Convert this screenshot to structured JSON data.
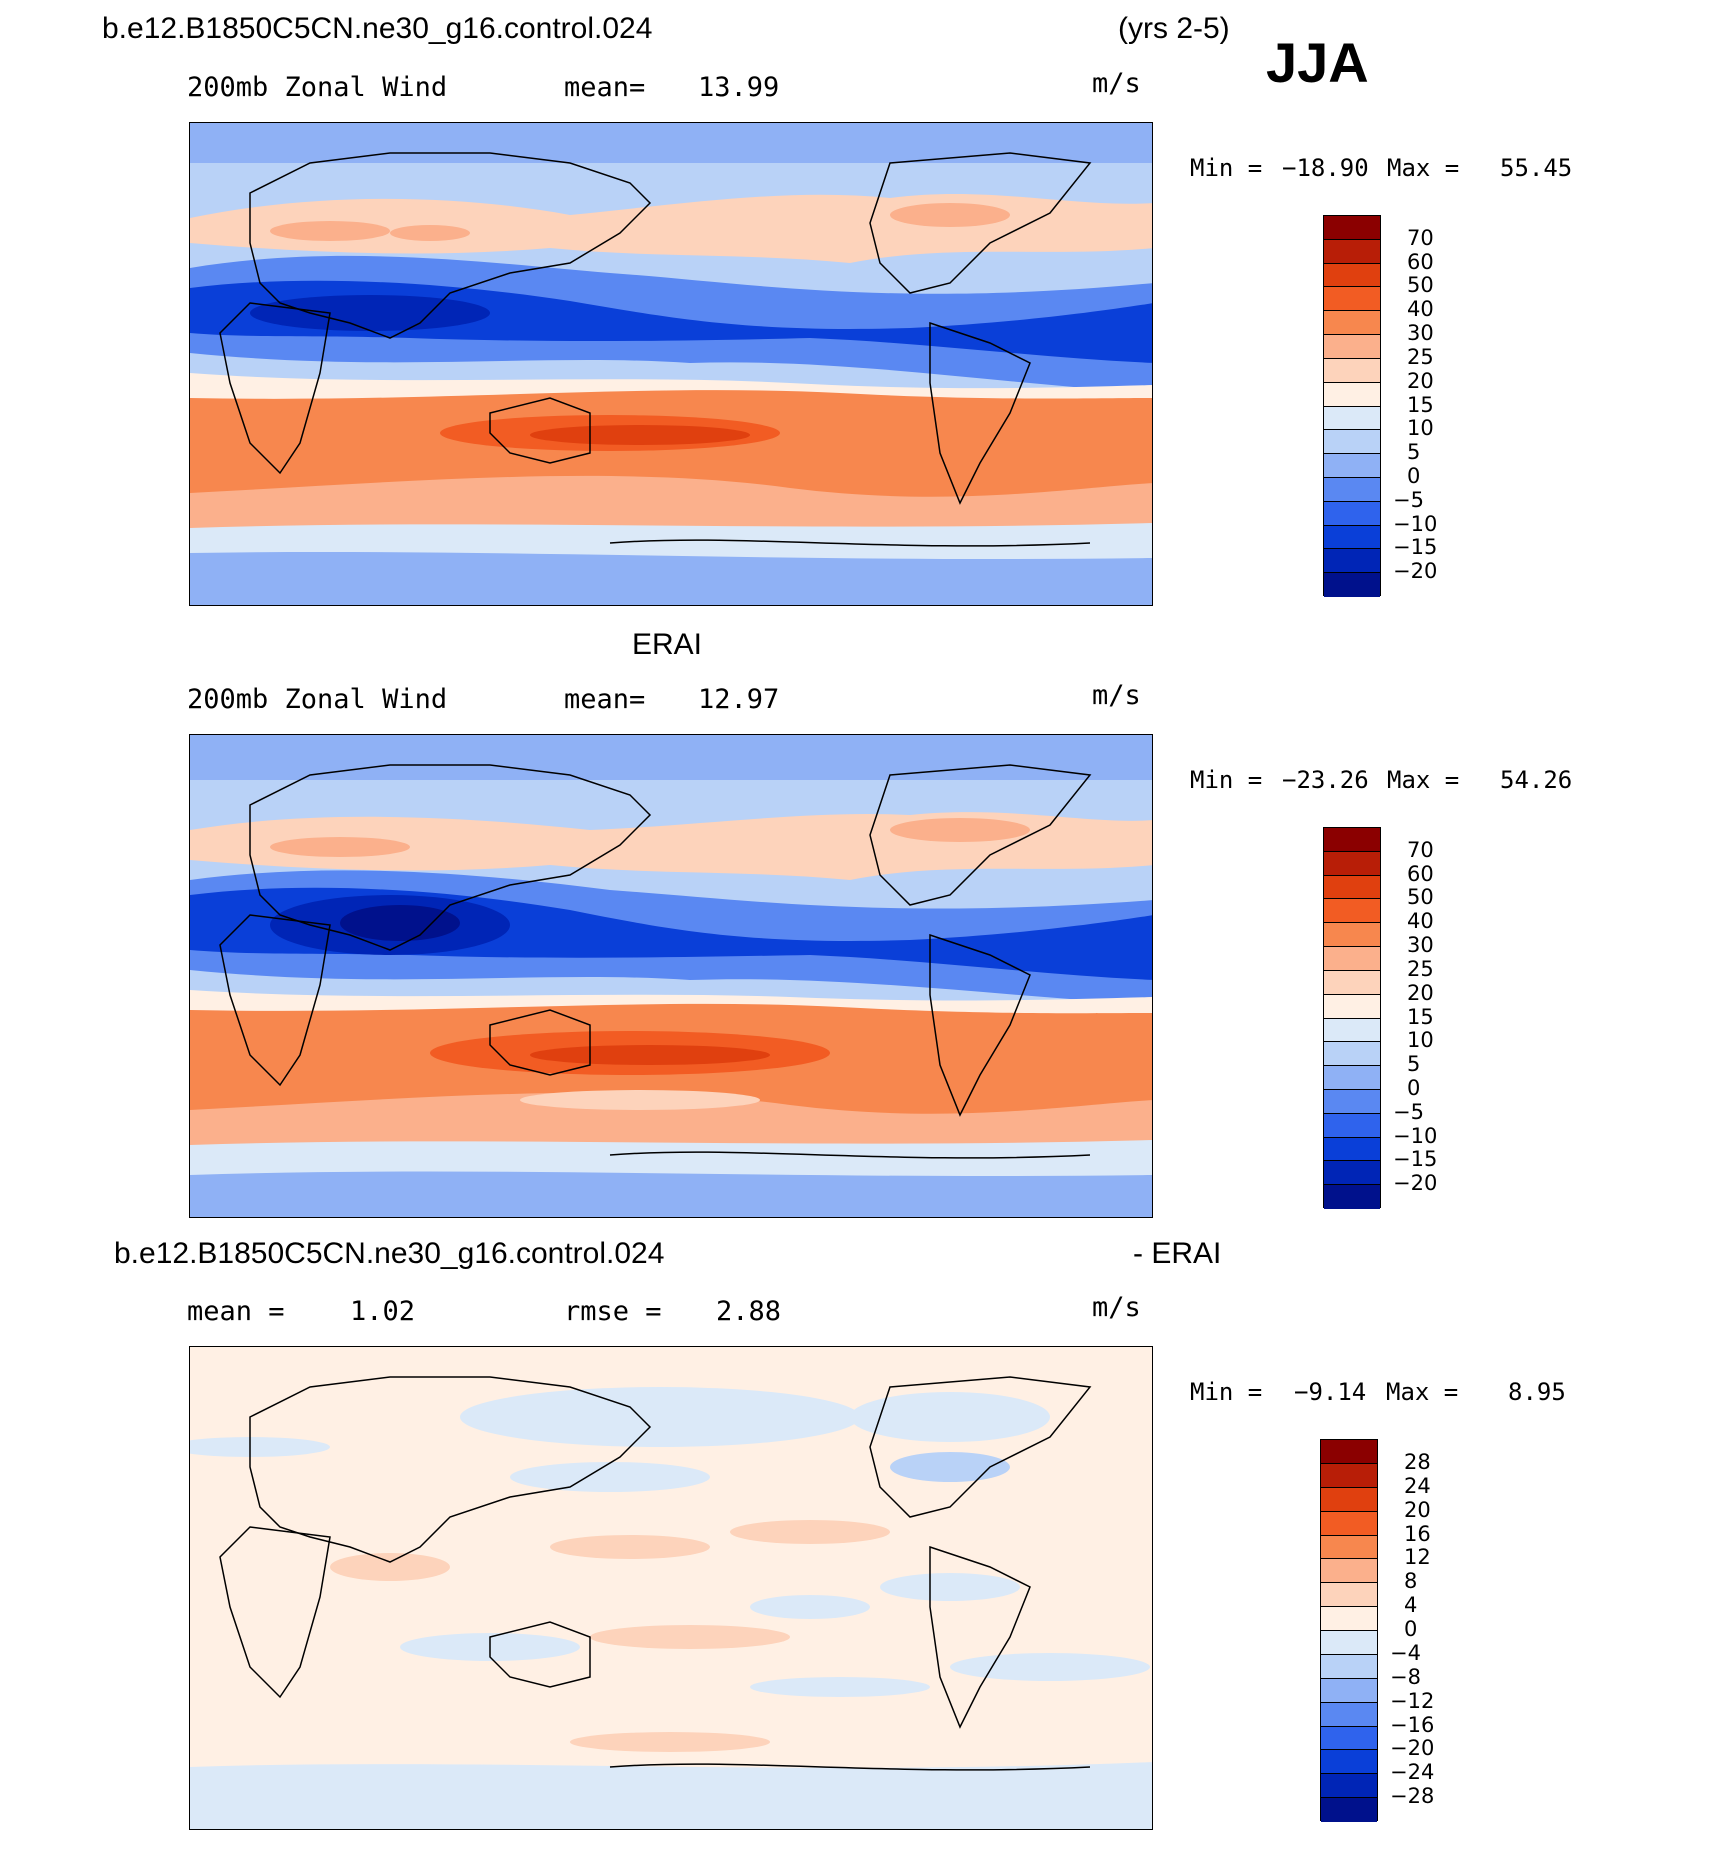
{
  "header": {
    "case_name": "b.e12.B1850C5CN.ne30_g16.control.024",
    "years": "(yrs 2-5)",
    "season": "JJA"
  },
  "panels": [
    {
      "id": "model",
      "variable": "200mb Zonal Wind",
      "stat_label": "mean=",
      "stat_value": "13.99",
      "units": "m/s",
      "min_label": "Min =",
      "min_value": "−18.90",
      "max_label": "Max =",
      "max_value": "55.45",
      "colorbar": {
        "labels": [
          "70",
          "60",
          "50",
          "40",
          "30",
          "25",
          "20",
          "15",
          "10",
          "5",
          "0",
          "−5",
          "−10",
          "−15",
          "−20"
        ],
        "colors": [
          "#8b0000",
          "#b81e07",
          "#e0400f",
          "#f25c23",
          "#f7874e",
          "#fbb08c",
          "#fdd3bb",
          "#fff0e4",
          "#dbe9f8",
          "#b9d2f7",
          "#8fb1f5",
          "#5a88f2",
          "#2f63ed",
          "#0a3fd8",
          "#0025b6",
          "#00118c"
        ]
      }
    },
    {
      "id": "obs",
      "title": "ERAI",
      "variable": "200mb Zonal Wind",
      "stat_label": "mean=",
      "stat_value": "12.97",
      "units": "m/s",
      "min_label": "Min =",
      "min_value": "−23.26",
      "max_label": "Max =",
      "max_value": "54.26",
      "colorbar": {
        "labels": [
          "70",
          "60",
          "50",
          "40",
          "30",
          "25",
          "20",
          "15",
          "10",
          "5",
          "0",
          "−5",
          "−10",
          "−15",
          "−20"
        ],
        "colors": [
          "#8b0000",
          "#b81e07",
          "#e0400f",
          "#f25c23",
          "#f7874e",
          "#fbb08c",
          "#fdd3bb",
          "#fff0e4",
          "#dbe9f8",
          "#b9d2f7",
          "#8fb1f5",
          "#5a88f2",
          "#2f63ed",
          "#0a3fd8",
          "#0025b6",
          "#00118c"
        ]
      }
    },
    {
      "id": "diff",
      "title_left": "b.e12.B1850C5CN.ne30_g16.control.024",
      "title_right": "- ERAI",
      "stat_label": "mean =",
      "stat_value": "1.02",
      "stat2_label": "rmse =",
      "stat2_value": "2.88",
      "units": "m/s",
      "min_label": "Min =",
      "min_value": "−9.14",
      "max_label": "Max =",
      "max_value": "8.95",
      "colorbar": {
        "labels": [
          "28",
          "24",
          "20",
          "16",
          "12",
          "8",
          "4",
          "0",
          "−4",
          "−8",
          "−12",
          "−16",
          "−20",
          "−24",
          "−28"
        ],
        "colors": [
          "#8b0000",
          "#b81e07",
          "#e0400f",
          "#f25c23",
          "#f7874e",
          "#fbb08c",
          "#fdd3bb",
          "#fff0e4",
          "#dbe9f8",
          "#b9d2f7",
          "#8fb1f5",
          "#5a88f2",
          "#2f63ed",
          "#0a3fd8",
          "#0025b6",
          "#00118c"
        ]
      }
    }
  ]
}
